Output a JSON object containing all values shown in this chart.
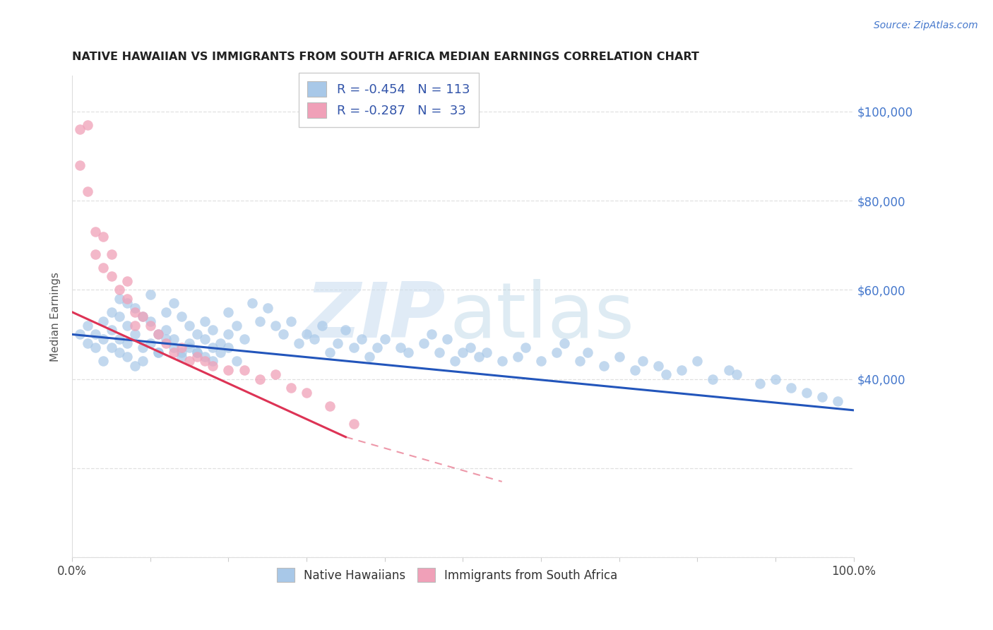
{
  "title": "NATIVE HAWAIIAN VS IMMIGRANTS FROM SOUTH AFRICA MEDIAN EARNINGS CORRELATION CHART",
  "source": "Source: ZipAtlas.com",
  "ylabel": "Median Earnings",
  "blue_color": "#A8C8E8",
  "pink_color": "#F0A0B8",
  "blue_line_color": "#2255BB",
  "pink_line_color": "#DD3355",
  "legend_r_blue": "-0.454",
  "legend_n_blue": "113",
  "legend_r_pink": "-0.287",
  "legend_n_pink": "33",
  "background_color": "#FFFFFF",
  "title_color": "#222222",
  "source_color": "#4477CC",
  "right_axis_color": "#4477CC",
  "grid_color": "#DDDDDD",
  "xlim": [
    0,
    100
  ],
  "ylim": [
    0,
    108000
  ],
  "blue_trend": [
    50000,
    33000
  ],
  "pink_trend_solid": [
    55000,
    27000
  ],
  "pink_trend_dashed_end": [
    17000
  ],
  "pink_solid_end_x": 35,
  "pink_dashed_end_x": 55,
  "blue_x": [
    1,
    2,
    2,
    3,
    3,
    4,
    4,
    5,
    5,
    6,
    6,
    6,
    7,
    7,
    7,
    8,
    8,
    9,
    9,
    10,
    10,
    11,
    11,
    12,
    12,
    13,
    13,
    14,
    14,
    15,
    15,
    16,
    16,
    17,
    17,
    18,
    18,
    19,
    20,
    20,
    21,
    22,
    23,
    24,
    25,
    26,
    27,
    28,
    29,
    30,
    31,
    32,
    33,
    34,
    35,
    36,
    37,
    38,
    39,
    40,
    42,
    43,
    45,
    46,
    47,
    48,
    49,
    50,
    51,
    52,
    53,
    55,
    57,
    58,
    60,
    62,
    63,
    65,
    66,
    68,
    70,
    72,
    73,
    75,
    76,
    78,
    80,
    82,
    84,
    85,
    88,
    90,
    92,
    94,
    96,
    98,
    4,
    5,
    6,
    7,
    8,
    9,
    10,
    11,
    12,
    13,
    14,
    15,
    16,
    17,
    18,
    19,
    20,
    21
  ],
  "blue_y": [
    50000,
    52000,
    48000,
    50000,
    47000,
    53000,
    49000,
    55000,
    51000,
    58000,
    54000,
    49000,
    57000,
    52000,
    48000,
    56000,
    50000,
    54000,
    47000,
    59000,
    53000,
    50000,
    46000,
    55000,
    51000,
    57000,
    49000,
    54000,
    46000,
    52000,
    48000,
    50000,
    46000,
    53000,
    49000,
    51000,
    47000,
    48000,
    55000,
    50000,
    52000,
    49000,
    57000,
    53000,
    56000,
    52000,
    50000,
    53000,
    48000,
    50000,
    49000,
    52000,
    46000,
    48000,
    51000,
    47000,
    49000,
    45000,
    47000,
    49000,
    47000,
    46000,
    48000,
    50000,
    46000,
    49000,
    44000,
    46000,
    47000,
    45000,
    46000,
    44000,
    45000,
    47000,
    44000,
    46000,
    48000,
    44000,
    46000,
    43000,
    45000,
    42000,
    44000,
    43000,
    41000,
    42000,
    44000,
    40000,
    42000,
    41000,
    39000,
    40000,
    38000,
    37000,
    36000,
    35000,
    44000,
    47000,
    46000,
    45000,
    43000,
    44000,
    48000,
    46000,
    49000,
    47000,
    45000,
    47000,
    46000,
    45000,
    44000,
    46000,
    47000,
    44000
  ],
  "pink_x": [
    1,
    2,
    1,
    2,
    3,
    3,
    4,
    4,
    5,
    5,
    6,
    7,
    7,
    8,
    8,
    9,
    10,
    11,
    12,
    13,
    14,
    15,
    16,
    17,
    18,
    20,
    22,
    24,
    26,
    28,
    30,
    33,
    36
  ],
  "pink_y": [
    96000,
    97000,
    88000,
    82000,
    73000,
    68000,
    72000,
    65000,
    68000,
    63000,
    60000,
    62000,
    58000,
    55000,
    52000,
    54000,
    52000,
    50000,
    48000,
    46000,
    47000,
    44000,
    45000,
    44000,
    43000,
    42000,
    42000,
    40000,
    41000,
    38000,
    37000,
    34000,
    30000
  ]
}
